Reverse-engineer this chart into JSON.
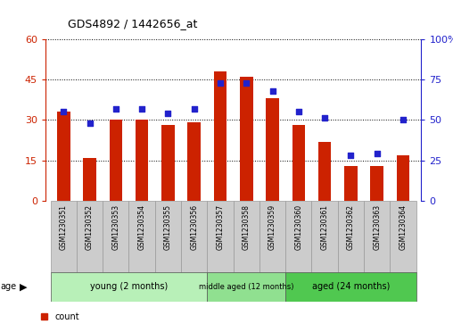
{
  "title": "GDS4892 / 1442656_at",
  "samples": [
    "GSM1230351",
    "GSM1230352",
    "GSM1230353",
    "GSM1230354",
    "GSM1230355",
    "GSM1230356",
    "GSM1230357",
    "GSM1230358",
    "GSM1230359",
    "GSM1230360",
    "GSM1230361",
    "GSM1230362",
    "GSM1230363",
    "GSM1230364"
  ],
  "counts": [
    33,
    16,
    30,
    30,
    28,
    29,
    48,
    46,
    38,
    28,
    22,
    13,
    13,
    17
  ],
  "percentiles": [
    55,
    48,
    57,
    57,
    54,
    57,
    73,
    73,
    68,
    55,
    51,
    28,
    29,
    50
  ],
  "groups": [
    {
      "label": "young (2 months)",
      "start": 0,
      "end": 5,
      "color": "#b8f0b8"
    },
    {
      "label": "middle aged (12 months)",
      "start": 6,
      "end": 8,
      "color": "#90e090"
    },
    {
      "label": "aged (24 months)",
      "start": 9,
      "end": 13,
      "color": "#50c850"
    }
  ],
  "ylim_left": [
    0,
    60
  ],
  "ylim_right": [
    0,
    100
  ],
  "yticks_left": [
    0,
    15,
    30,
    45,
    60
  ],
  "yticks_right": [
    0,
    25,
    50,
    75,
    100
  ],
  "bar_color": "#cc2200",
  "dot_color": "#2222cc",
  "bg_color": "#ffffff",
  "grid_color": "#000000",
  "tick_area_color": "#cccccc",
  "left_axis_color": "#cc2200",
  "right_axis_color": "#2222cc",
  "figsize": [
    5.08,
    3.63
  ],
  "dpi": 100
}
